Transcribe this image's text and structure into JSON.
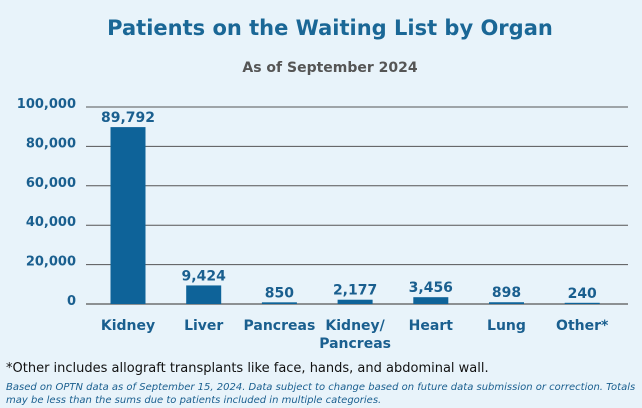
{
  "chart_data": {
    "type": "bar",
    "title": "Patients on the Waiting List by Organ",
    "subtitle": "As of September 2024",
    "categories": [
      "Kidney",
      "Liver",
      "Pancreas",
      "Kidney/\nPancreas",
      "Heart",
      "Lung",
      "Other*"
    ],
    "values": [
      89792,
      9424,
      850,
      2177,
      3456,
      898,
      240
    ],
    "value_labels": [
      "89,792",
      "9,424",
      "850",
      "2,177",
      "3,456",
      "898",
      "240"
    ],
    "yticks": [
      0,
      20000,
      40000,
      60000,
      80000,
      100000
    ],
    "ytick_labels": [
      "0",
      "20,000",
      "40,000",
      "60,000",
      "80,000",
      "100,000"
    ],
    "ylim": [
      0,
      100000
    ],
    "grid": true,
    "bar_color": "#0e6399",
    "gridline_color": "#555555"
  },
  "footnote": "*Other includes allograft transplants like face, hands, and abdominal wall.",
  "source_note": "Based on OPTN data as of September 15, 2024. Data subject to change based on future data submission or correction. Totals may be less than the sums due to patients included in multiple categories."
}
